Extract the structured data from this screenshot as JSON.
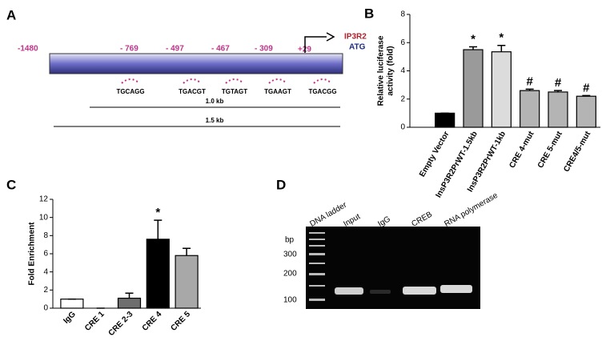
{
  "panel_labels": [
    "A",
    "B",
    "C",
    "D"
  ],
  "diagram": {
    "start": "-1480",
    "sites": [
      "- 769",
      "- 497",
      "- 467",
      "- 309"
    ],
    "tss": "+29",
    "gene": "IP3R2",
    "codon": "ATG",
    "motifs": [
      "TGCAGG",
      "TGACGT",
      "TGTAGT",
      "TGAAGT",
      "TGACGG"
    ],
    "fragments": [
      "1.0 kb",
      "1.5 kb"
    ]
  },
  "gel": {
    "size_unit": "bp",
    "size_markers": [
      "300",
      "200",
      "100"
    ],
    "lanes": [
      "DNA ladder",
      "Input",
      "IgG",
      "CREB",
      "RNA polymerase"
    ]
  },
  "chart_data": [
    {
      "type": "bar",
      "y_label_lines": [
        "Relative luciferase",
        "activity (fold)"
      ],
      "categories": [
        "Empty Vector",
        "InsP3R2PrWT-1.5kb",
        "InsP3R2PrWT-1kb",
        "CRE 4-mut",
        "CRE 5-mut",
        "CRE4/5-mut"
      ],
      "values": [
        1.0,
        5.5,
        5.35,
        2.6,
        2.5,
        2.2
      ],
      "errors": [
        0,
        0.2,
        0.45,
        0.1,
        0.1,
        0.05
      ],
      "annotations": [
        null,
        "*",
        "*",
        "#",
        "#",
        "#"
      ],
      "colors": [
        "#000000",
        "#9a9a9a",
        "#dcdcdc",
        "#b4b4b4",
        "#b4b4b4",
        "#b4b4b4"
      ],
      "ylim": [
        0,
        8
      ],
      "yticks": [
        0,
        2,
        4,
        6,
        8
      ]
    },
    {
      "type": "bar",
      "y_label_lines": [
        "Fold Enrichment"
      ],
      "categories": [
        "IgG",
        "CRE 1",
        "CRE 2-3",
        "CRE 4",
        "CRE 5"
      ],
      "values": [
        1.0,
        0,
        1.1,
        7.6,
        5.8
      ],
      "errors": [
        0,
        0,
        0.55,
        2.1,
        0.8
      ],
      "annotations": [
        null,
        null,
        null,
        "*",
        null
      ],
      "colors": [
        "#ffffff",
        "#ffffff",
        "#6e6e6e",
        "#000000",
        "#a8a8a8"
      ],
      "ylim": [
        0,
        12
      ],
      "yticks": [
        0,
        2,
        4,
        6,
        8,
        10,
        12
      ]
    }
  ]
}
